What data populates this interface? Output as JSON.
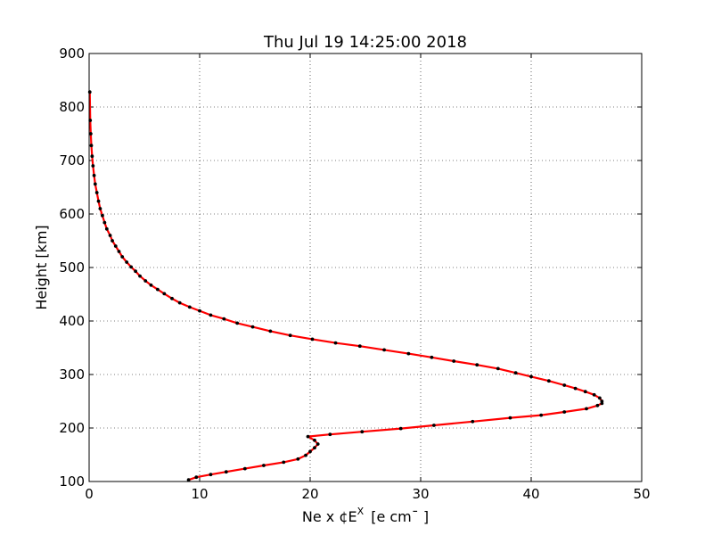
{
  "chart_data": {
    "type": "line",
    "title": "Thu Jul 19 14:25:00 2018",
    "xlabel": "Ne x ¢E",
    "xlabel_sup": "X",
    "xlabel_unit": "[e cm¯ ]",
    "ylabel": "Height [km]",
    "xlim": [
      0,
      50
    ],
    "ylim": [
      100,
      900
    ],
    "xticks": [
      "0",
      "10",
      "20",
      "30",
      "40",
      "50"
    ],
    "yticks": [
      "100",
      "200",
      "300",
      "400",
      "500",
      "600",
      "700",
      "800",
      "900"
    ],
    "grid": true,
    "colors": {
      "line": "#ff0000",
      "marker": "#000000"
    },
    "series": [
      {
        "x": [
          9.0,
          9.7,
          11.0,
          12.4,
          14.1,
          15.8,
          17.6,
          18.9,
          19.6,
          20.0,
          20.4,
          20.7,
          20.4,
          19.8,
          21.8,
          24.7,
          28.2,
          31.2,
          34.7,
          38.1,
          40.9,
          43.0,
          45.0,
          46.0,
          46.4,
          46.4,
          46.2,
          45.7,
          44.9,
          44.0,
          43.0,
          41.6,
          40.0,
          38.6,
          37.0,
          35.1,
          33.0,
          31.0,
          28.9,
          26.7,
          24.5,
          22.3,
          20.2,
          18.2,
          16.4,
          14.8,
          13.4,
          12.2,
          11.0,
          10.0,
          9.1,
          8.2,
          7.5,
          6.8,
          6.2,
          5.6,
          5.1,
          4.6,
          4.2,
          3.8,
          3.4,
          3.0,
          2.7,
          2.4,
          2.1,
          1.9,
          1.6,
          1.4,
          1.2,
          1.0,
          0.85,
          0.7,
          0.55,
          0.45,
          0.35,
          0.27,
          0.2,
          0.15,
          0.1,
          0.06
        ],
        "y": [
          103,
          108,
          113,
          118,
          124,
          130,
          136,
          142,
          149,
          156,
          163,
          170,
          177,
          184,
          188,
          193,
          199,
          205,
          212,
          219,
          224,
          230,
          236,
          242,
          246,
          250,
          256,
          262,
          268,
          274,
          280,
          288,
          296,
          303,
          311,
          318,
          325,
          332,
          339,
          346,
          353,
          359,
          366,
          373,
          381,
          389,
          396,
          404,
          411,
          419,
          426,
          434,
          442,
          451,
          459,
          467,
          475,
          484,
          493,
          501,
          510,
          520,
          530,
          540,
          550,
          560,
          572,
          584,
          597,
          610,
          624,
          640,
          656,
          672,
          690,
          708,
          728,
          750,
          775,
          828
        ]
      }
    ]
  }
}
